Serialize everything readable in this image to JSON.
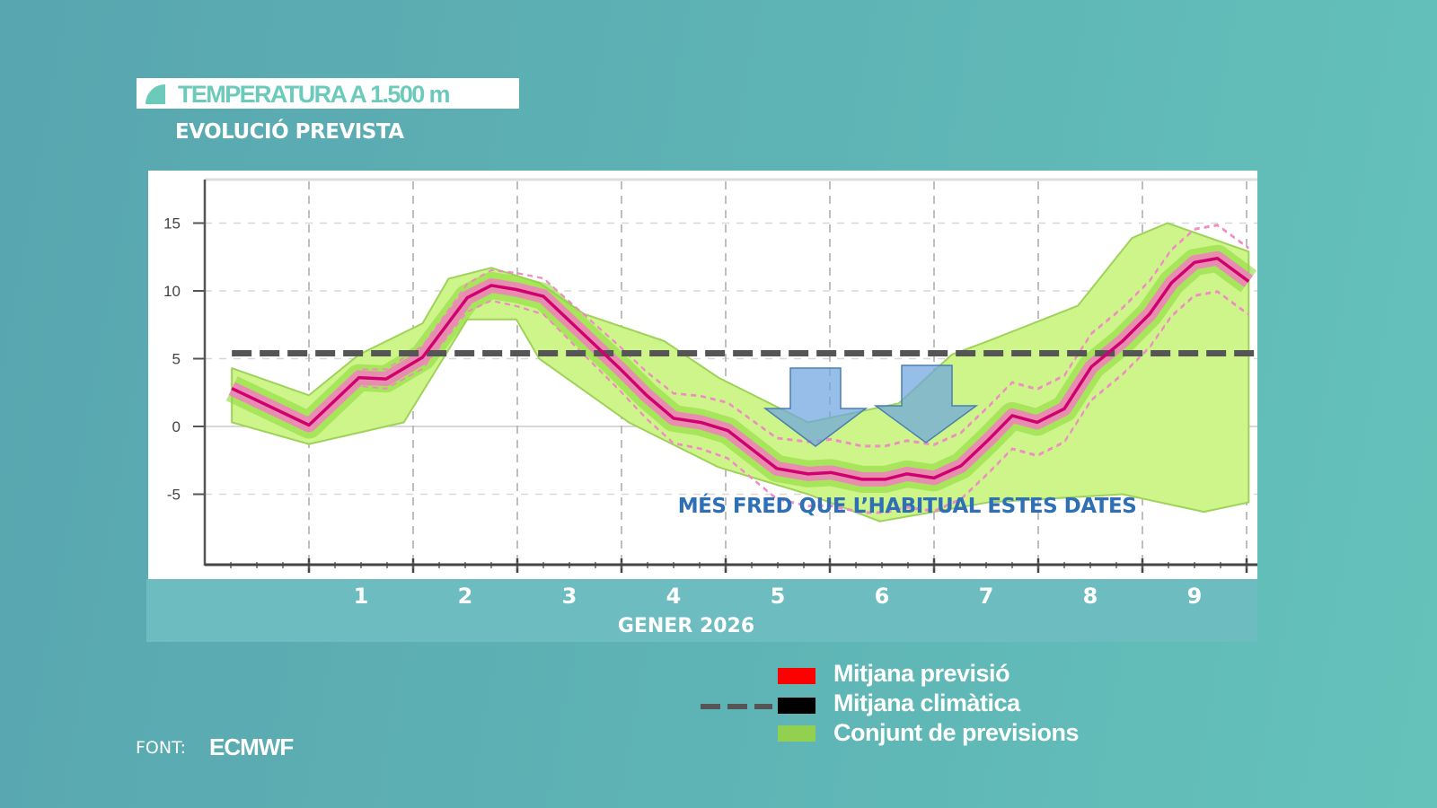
{
  "header": {
    "title": "TEMPERATURA A 1.500 m",
    "subtitle": "EVOLUCIÓ PREVISTA"
  },
  "chart_data": {
    "type": "line",
    "title": "TEMPERATURA A 1.500 m",
    "subtitle": "EVOLUCIÓ PREVISTA",
    "xlabel": "GENER 2026",
    "ylabel": "",
    "x_tick_labels": [
      "1",
      "2",
      "3",
      "4",
      "5",
      "6",
      "7",
      "8",
      "9"
    ],
    "x_tick_positions": [
      1.5,
      2.5,
      3.5,
      4.5,
      5.5,
      6.5,
      7.5,
      8.5,
      9.5
    ],
    "y_ticks": [
      15,
      10,
      5,
      0,
      -5
    ],
    "xlim": [
      0.45,
      10.2
    ],
    "ylim": [
      -10.2,
      18.2
    ],
    "grid": true,
    "series": [
      {
        "name": "Mitjana previsió",
        "color": "#d0006f",
        "x": [
          0.26,
          1.0,
          1.48,
          1.74,
          2.09,
          2.52,
          2.75,
          2.99,
          3.25,
          3.98,
          4.24,
          4.5,
          4.76,
          5.02,
          5.49,
          5.79,
          6.01,
          6.31,
          6.53,
          6.74,
          7.0,
          7.26,
          7.52,
          7.75,
          7.99,
          8.25,
          8.51,
          8.81,
          9.07,
          9.28,
          9.5,
          9.72,
          10.02
        ],
        "y": [
          2.8,
          0.1,
          3.6,
          3.5,
          5.1,
          9.5,
          10.4,
          10.1,
          9.6,
          4.3,
          2.3,
          0.6,
          0.3,
          -0.3,
          -3.1,
          -3.5,
          -3.4,
          -3.9,
          -3.9,
          -3.5,
          -3.8,
          -2.9,
          -1.0,
          0.8,
          0.3,
          1.3,
          4.4,
          6.3,
          8.3,
          10.6,
          12.1,
          12.4,
          10.7
        ]
      },
      {
        "name": "Mitjana climàtica",
        "color": "#555555",
        "style": "dashed",
        "x": [
          0.26,
          10.1
        ],
        "y": [
          5.4,
          5.4
        ]
      }
    ],
    "ensemble": {
      "name": "Conjunt de previsions",
      "color": "#a8e04a",
      "upper": {
        "x": [
          0.26,
          1.0,
          1.48,
          2.09,
          2.34,
          2.75,
          3.21,
          3.64,
          4.41,
          4.93,
          5.79,
          6.66,
          7.17,
          7.52,
          8.38,
          8.9,
          9.24,
          10.02
        ],
        "y": [
          4.3,
          2.3,
          5.3,
          7.6,
          10.9,
          11.7,
          10.6,
          8.3,
          6.3,
          3.6,
          0.3,
          1.7,
          5.3,
          6.3,
          8.9,
          13.9,
          15.0,
          12.9
        ]
      },
      "lower": {
        "x": [
          0.26,
          1.0,
          1.91,
          2.52,
          2.99,
          3.21,
          4.07,
          4.93,
          5.79,
          6.48,
          7.52,
          8.81,
          9.59,
          10.02
        ],
        "y": [
          0.3,
          -1.3,
          0.3,
          7.9,
          7.9,
          5.0,
          0.3,
          -3.0,
          -5.0,
          -7.0,
          -5.6,
          -5.0,
          -6.3,
          -5.6
        ]
      }
    },
    "annotation": "MÉS FRED QUE L’HABITUAL ESTES DATES",
    "legend": {
      "placement": "bottom-right",
      "entries": [
        {
          "label": "Mitjana previsió",
          "color": "#ff0000"
        },
        {
          "label": "Mitjana climàtica",
          "color": "#000000"
        },
        {
          "label": "Conjunt de previsions",
          "color": "#92d050"
        }
      ]
    }
  },
  "source": {
    "label": "FONT:",
    "value": "ECMWF"
  }
}
